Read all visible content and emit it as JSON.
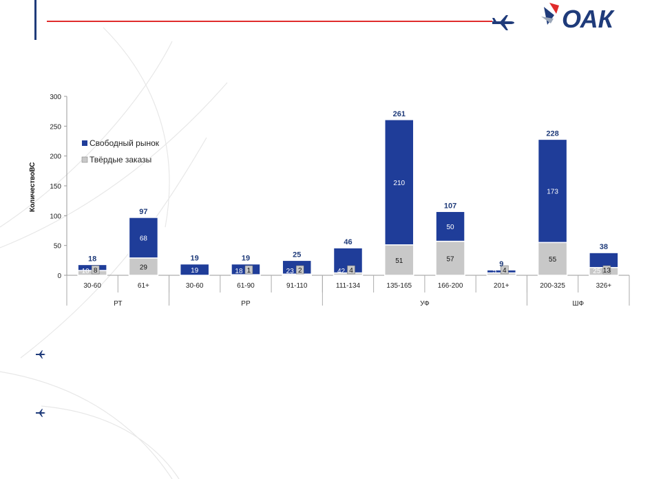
{
  "header": {
    "logo_text": "ОАК",
    "accent_color": "#e02b2b",
    "brand_color": "#1f3b7a"
  },
  "icons": [
    "airplane-icon",
    "oak-logo-star-icon",
    "bullet-airplane-icon"
  ],
  "chart_data": {
    "type": "bar",
    "stacked": true,
    "ylabel": "КоличествоВС",
    "ylim": [
      0,
      300
    ],
    "yticks": [
      0,
      50,
      100,
      150,
      200,
      250,
      300
    ],
    "legend": {
      "position": "top-left"
    },
    "groups": [
      {
        "label": "РТ",
        "categories": [
          "30-60",
          "61+"
        ]
      },
      {
        "label": "РР",
        "categories": [
          "30-60",
          "61-90",
          "91-110"
        ]
      },
      {
        "label": "УФ",
        "categories": [
          "111-134",
          "135-165",
          "166-200",
          "201+"
        ]
      },
      {
        "label": "ШФ",
        "categories": [
          "200-325",
          "326+"
        ]
      }
    ],
    "categories": [
      "30-60",
      "61+",
      "30-60",
      "61-90",
      "91-110",
      "111-134",
      "135-165",
      "166-200",
      "201+",
      "200-325",
      "326+"
    ],
    "series": [
      {
        "name": "Твёрдые заказы",
        "color": "#c8c8c8",
        "values": [
          8,
          29,
          0,
          1,
          2,
          4,
          51,
          57,
          4,
          55,
          13
        ]
      },
      {
        "name": "Свободный рынок",
        "color": "#1f3d99",
        "values": [
          10,
          68,
          19,
          18,
          23,
          42,
          210,
          50,
          5,
          173,
          25
        ]
      }
    ],
    "totals": [
      18,
      97,
      19,
      19,
      25,
      46,
      261,
      107,
      9,
      228,
      38
    ],
    "value_labels": [
      {
        "free": "10",
        "firm": "8"
      },
      {
        "free": "68",
        "firm": "29"
      },
      {
        "free": "19",
        "firm": ""
      },
      {
        "free": "18",
        "firm": "1"
      },
      {
        "free": "23",
        "firm": "2"
      },
      {
        "free": "42",
        "firm": "4"
      },
      {
        "free": "210",
        "firm": "51"
      },
      {
        "free": "50",
        "firm": "57"
      },
      {
        "free": "5",
        "firm": "4"
      },
      {
        "free": "173",
        "firm": "55"
      },
      {
        "free": "25",
        "firm": "13"
      }
    ]
  }
}
